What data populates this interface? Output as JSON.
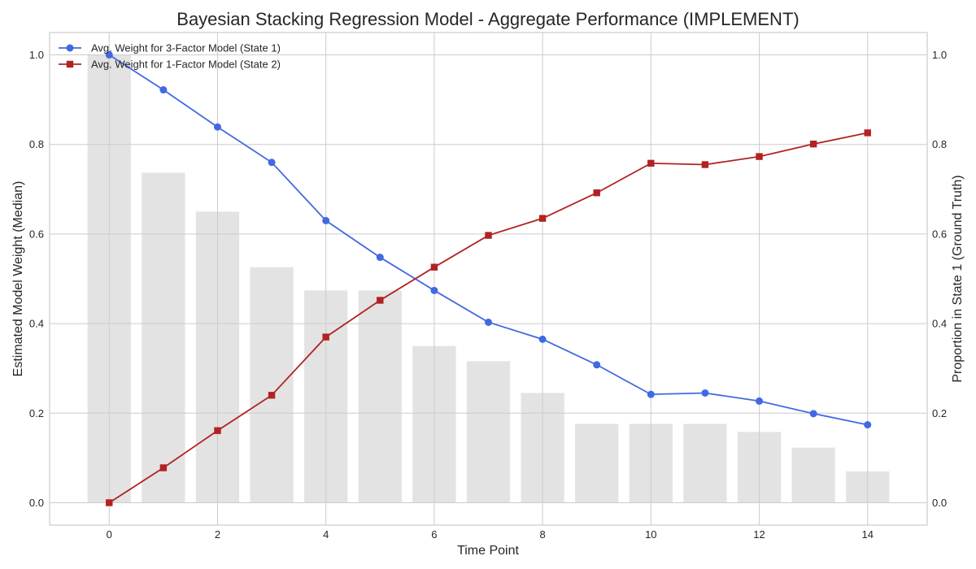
{
  "chart_data": {
    "type": "line",
    "title": "Bayesian Stacking Regression Model - Aggregate Performance (IMPLEMENT)",
    "xlabel": "Time Point",
    "ylabel": "Estimated Model Weight (Median)",
    "y2label": "Proportion in State 1 (Ground Truth)",
    "xlim": [
      -1.1,
      15.1
    ],
    "ylim": [
      -0.05,
      1.05
    ],
    "y2lim": [
      -0.05,
      1.05
    ],
    "x_ticks": [
      0,
      2,
      4,
      6,
      8,
      10,
      12,
      14
    ],
    "y_ticks": [
      0.0,
      0.2,
      0.4,
      0.6,
      0.8,
      1.0
    ],
    "y2_ticks": [
      0.0,
      0.2,
      0.4,
      0.6,
      0.8,
      1.0
    ],
    "grid": true,
    "legend_position": "top-left",
    "x": [
      0,
      1,
      2,
      3,
      4,
      5,
      6,
      7,
      8,
      9,
      10,
      11,
      12,
      13,
      14
    ],
    "bars": {
      "axis": "secondary",
      "color": "#e3e3e3",
      "values": [
        1.0,
        0.737,
        0.65,
        0.526,
        0.474,
        0.474,
        0.35,
        0.316,
        0.245,
        0.176,
        0.176,
        0.176,
        0.158,
        0.123,
        0.07
      ]
    },
    "series": [
      {
        "name": "Avg. Weight for 3-Factor Model (State 1)",
        "color": "#4169e1",
        "marker": "circle",
        "values": [
          1.0,
          0.922,
          0.839,
          0.76,
          0.63,
          0.548,
          0.474,
          0.403,
          0.365,
          0.308,
          0.242,
          0.245,
          0.227,
          0.199,
          0.174
        ]
      },
      {
        "name": "Avg. Weight for 1-Factor Model (State 2)",
        "color": "#b22222",
        "marker": "square",
        "values": [
          0.0,
          0.078,
          0.161,
          0.24,
          0.37,
          0.452,
          0.526,
          0.597,
          0.635,
          0.692,
          0.758,
          0.755,
          0.773,
          0.801,
          0.826
        ]
      }
    ]
  }
}
